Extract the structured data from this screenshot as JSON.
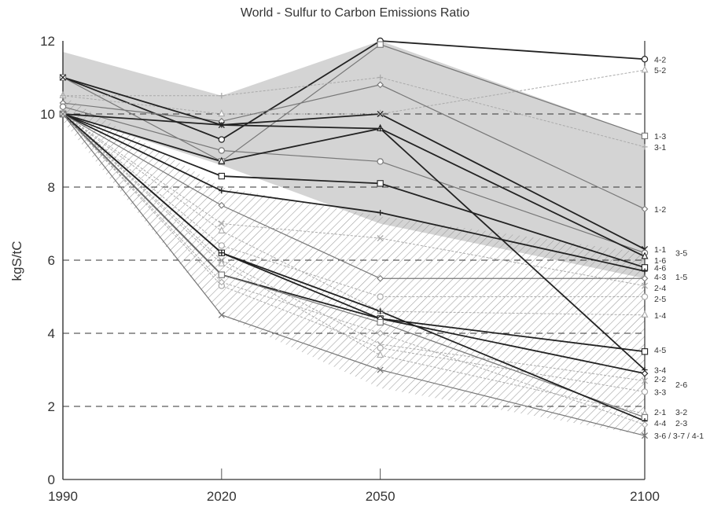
{
  "chart_data": {
    "type": "line",
    "title": "World - Sulfur to Carbon Emissions Ratio",
    "xlabel": "",
    "ylabel": "kgS/tC",
    "x": [
      "1990",
      "2020",
      "2050",
      "2100"
    ],
    "ylim": [
      0,
      12
    ],
    "yticks": [
      "0",
      "2",
      "4",
      "6",
      "8",
      "10",
      "12"
    ],
    "grid": "dashed horizontal at 2, 4, 8, 10",
    "colors": {
      "dark": "#222222",
      "medium": "#777777",
      "light": "#aaaaaa",
      "shade": "#cccccc",
      "hatch": "#999999"
    },
    "bands": [
      {
        "kind": "gray-fill",
        "upper": [
          11.7,
          10.5,
          12.0,
          9.4
        ],
        "lower": [
          10.0,
          8.6,
          7.0,
          5.5
        ]
      },
      {
        "kind": "hatched",
        "upper": [
          10.5,
          8.0,
          7.2,
          6.2
        ],
        "lower": [
          9.8,
          4.5,
          2.5,
          1.2
        ]
      }
    ],
    "series": [
      {
        "name": "4-2",
        "style": "dark",
        "values": [
          11.0,
          9.3,
          12.0,
          11.5
        ]
      },
      {
        "name": "5-2",
        "style": "light",
        "values": [
          10.5,
          10.0,
          10.0,
          11.2
        ]
      },
      {
        "name": "1-3",
        "style": "medium",
        "values": [
          11.0,
          8.7,
          11.9,
          9.4
        ]
      },
      {
        "name": "3-1",
        "style": "light",
        "values": [
          10.5,
          10.5,
          11.0,
          9.1
        ]
      },
      {
        "name": "1-2",
        "style": "medium",
        "values": [
          10.3,
          9.8,
          10.8,
          7.4
        ]
      },
      {
        "name": "1-1",
        "style": "dark",
        "values": [
          11.0,
          9.7,
          10.0,
          6.3
        ]
      },
      {
        "name": "3-5",
        "style": "medium",
        "values": [
          10.2,
          9.0,
          8.7,
          6.2
        ]
      },
      {
        "name": "1-6",
        "style": "dark",
        "values": [
          10.0,
          8.7,
          9.6,
          6.1
        ]
      },
      {
        "name": "4-6",
        "style": "dark",
        "values": [
          10.0,
          8.3,
          8.1,
          5.8
        ]
      },
      {
        "name": "4-3",
        "style": "dark",
        "values": [
          10.0,
          7.9,
          7.3,
          5.7
        ]
      },
      {
        "name": "1-5",
        "style": "medium",
        "values": [
          10.0,
          7.5,
          5.5,
          5.5
        ]
      },
      {
        "name": "2-4",
        "style": "light",
        "values": [
          10.0,
          7.0,
          6.6,
          5.3
        ]
      },
      {
        "name": "2-5",
        "style": "light",
        "values": [
          10.0,
          6.4,
          5.0,
          5.0
        ]
      },
      {
        "name": "1-4",
        "style": "light",
        "values": [
          10.0,
          6.8,
          4.6,
          4.5
        ]
      },
      {
        "name": "4-5",
        "style": "dark",
        "values": [
          10.0,
          6.2,
          4.4,
          3.5
        ]
      },
      {
        "name": "3-4",
        "style": "dark",
        "values": [
          10.0,
          9.7,
          9.6,
          3.0
        ]
      },
      {
        "name": "2-2",
        "style": "dark",
        "values": [
          10.0,
          5.6,
          4.4,
          2.9
        ]
      },
      {
        "name": "2-6",
        "style": "light",
        "values": [
          10.0,
          6.0,
          3.7,
          2.7
        ]
      },
      {
        "name": "3-3",
        "style": "light",
        "values": [
          10.0,
          5.3,
          3.6,
          2.4
        ]
      },
      {
        "name": "2-1",
        "style": "light",
        "values": [
          10.0,
          5.9,
          3.4,
          1.8
        ]
      },
      {
        "name": "3-2",
        "style": "medium",
        "values": [
          10.0,
          5.6,
          4.3,
          1.7
        ]
      },
      {
        "name": "4-4",
        "style": "dark",
        "values": [
          10.0,
          6.2,
          4.6,
          1.6
        ]
      },
      {
        "name": "2-3",
        "style": "light",
        "values": [
          10.0,
          5.4,
          4.0,
          1.5
        ]
      },
      {
        "name": "3-6 / 3-7 / 4-1",
        "style": "medium",
        "values": [
          10.0,
          4.5,
          3.0,
          1.2
        ]
      }
    ],
    "label_rows": [
      {
        "text": "4-2",
        "y": 11.5,
        "col": 0
      },
      {
        "text": "5-2",
        "y": 11.2,
        "col": 0
      },
      {
        "text": "1-3",
        "y": 9.4,
        "col": 0
      },
      {
        "text": "3-1",
        "y": 9.1,
        "col": 0
      },
      {
        "text": "1-2",
        "y": 7.4,
        "col": 0
      },
      {
        "text": "1-1",
        "y": 6.3,
        "col": 0
      },
      {
        "text": "3-5",
        "y": 6.2,
        "col": 1
      },
      {
        "text": "1-6",
        "y": 6.0,
        "col": 0
      },
      {
        "text": "4-6",
        "y": 5.8,
        "col": 0
      },
      {
        "text": "4-3",
        "y": 5.55,
        "col": 0
      },
      {
        "text": "1-5",
        "y": 5.55,
        "col": 1
      },
      {
        "text": "2-4",
        "y": 5.25,
        "col": 0
      },
      {
        "text": "2-5",
        "y": 4.95,
        "col": 0
      },
      {
        "text": "1-4",
        "y": 4.5,
        "col": 0
      },
      {
        "text": "4-5",
        "y": 3.55,
        "col": 0
      },
      {
        "text": "3-4",
        "y": 3.0,
        "col": 0
      },
      {
        "text": "2-2",
        "y": 2.75,
        "col": 0
      },
      {
        "text": "2-6",
        "y": 2.6,
        "col": 1
      },
      {
        "text": "3-3",
        "y": 2.4,
        "col": 0
      },
      {
        "text": "2-1",
        "y": 1.85,
        "col": 0
      },
      {
        "text": "3-2",
        "y": 1.85,
        "col": 1
      },
      {
        "text": "4-4",
        "y": 1.55,
        "col": 0
      },
      {
        "text": "2-3",
        "y": 1.55,
        "col": 1
      },
      {
        "text": "3-6 / 3-7 / 4-1",
        "y": 1.2,
        "col": 0
      }
    ]
  }
}
